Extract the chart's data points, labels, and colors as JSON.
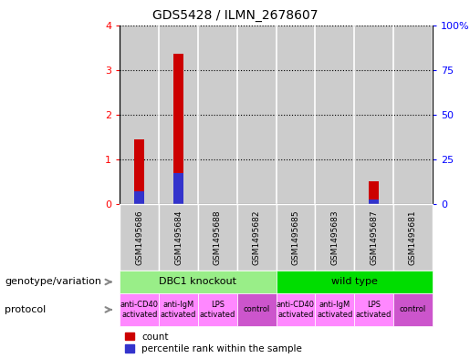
{
  "title": "GDS5428 / ILMN_2678607",
  "samples": [
    "GSM1495686",
    "GSM1495684",
    "GSM1495688",
    "GSM1495682",
    "GSM1495685",
    "GSM1495683",
    "GSM1495687",
    "GSM1495681"
  ],
  "count_values": [
    1.45,
    3.35,
    0,
    0,
    0,
    0,
    0.5,
    0
  ],
  "percentile_values": [
    7.0,
    17.5,
    0,
    0,
    0,
    0,
    2.5,
    0
  ],
  "ylim_left": [
    0,
    4
  ],
  "ylim_right": [
    0,
    100
  ],
  "yticks_left": [
    0,
    1,
    2,
    3,
    4
  ],
  "yticks_right": [
    0,
    25,
    50,
    75,
    100
  ],
  "yticklabels_right": [
    "0",
    "25",
    "50",
    "75",
    "100%"
  ],
  "bar_color_red": "#cc0000",
  "bar_color_blue": "#3333cc",
  "bar_bg_color": "#cccccc",
  "genotype_groups": [
    {
      "label": "DBC1 knockout",
      "start": 0,
      "end": 4,
      "color": "#99ee88"
    },
    {
      "label": "wild type",
      "start": 4,
      "end": 8,
      "color": "#00dd00"
    }
  ],
  "protocol_groups": [
    {
      "label": "anti-CD40\nactivated",
      "start": 0,
      "end": 1,
      "color": "#ff88ff"
    },
    {
      "label": "anti-IgM\nactivated",
      "start": 1,
      "end": 2,
      "color": "#ff88ff"
    },
    {
      "label": "LPS\nactivated",
      "start": 2,
      "end": 3,
      "color": "#ff88ff"
    },
    {
      "label": "control",
      "start": 3,
      "end": 4,
      "color": "#cc55cc"
    },
    {
      "label": "anti-CD40\nactivated",
      "start": 4,
      "end": 5,
      "color": "#ff88ff"
    },
    {
      "label": "anti-IgM\nactivated",
      "start": 5,
      "end": 6,
      "color": "#ff88ff"
    },
    {
      "label": "LPS\nactivated",
      "start": 6,
      "end": 7,
      "color": "#ff88ff"
    },
    {
      "label": "control",
      "start": 7,
      "end": 8,
      "color": "#cc55cc"
    }
  ],
  "legend_red_label": "count",
  "legend_blue_label": "percentile rank within the sample",
  "geno_label": "genotype/variation",
  "proto_label": "protocol"
}
